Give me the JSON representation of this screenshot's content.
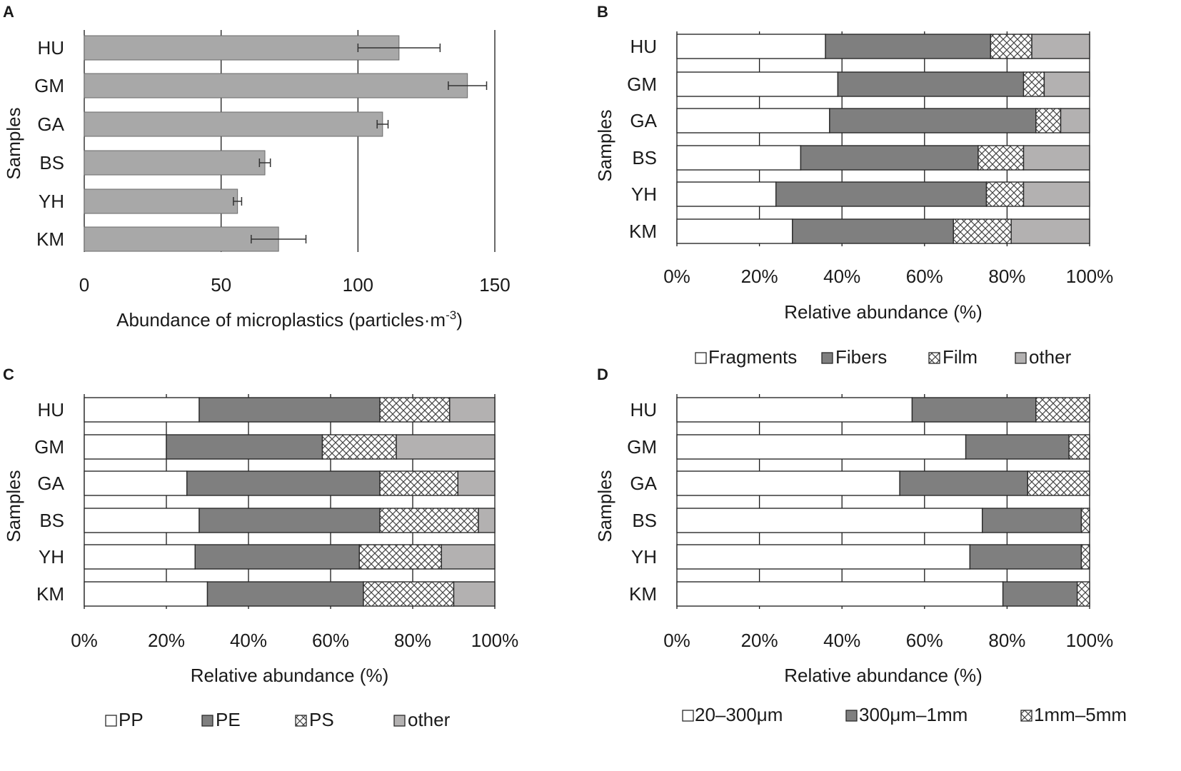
{
  "chart_data": [
    {
      "panel": "A",
      "type": "bar",
      "orientation": "horizontal",
      "categories": [
        "HU",
        "GM",
        "GA",
        "BS",
        "YH",
        "KM"
      ],
      "values": [
        115,
        140,
        109,
        66,
        56,
        71
      ],
      "errors": [
        15,
        7,
        2,
        2,
        1.5,
        10
      ],
      "xlabel": "Abundance of microplastics (particles·m",
      "xlabel_superscript": "-3",
      "xlabel_close": ")",
      "ylabel": "Samples",
      "xlim": [
        0,
        150
      ],
      "xticks": [
        "0",
        "50",
        "100",
        "150"
      ],
      "color": "#a8a8a8"
    },
    {
      "panel": "B",
      "type": "bar",
      "orientation": "horizontal",
      "stacked": true,
      "normalized": true,
      "categories": [
        "HU",
        "GM",
        "GA",
        "BS",
        "YH",
        "KM"
      ],
      "series": [
        {
          "name": "Fragments",
          "style": "white",
          "values": [
            36,
            39,
            37,
            30,
            24,
            28
          ]
        },
        {
          "name": "Fibers",
          "style": "dark",
          "values": [
            40,
            45,
            50,
            43,
            51,
            39
          ]
        },
        {
          "name": "Film",
          "style": "hatch",
          "values": [
            10,
            5,
            6,
            11,
            9,
            14
          ]
        },
        {
          "name": "other",
          "style": "light",
          "values": [
            14,
            11,
            7,
            16,
            16,
            19
          ]
        }
      ],
      "xlabel": "Relative abundance (%)",
      "ylabel": "Samples",
      "xticks": [
        "0%",
        "20%",
        "40%",
        "60%",
        "80%",
        "100%"
      ]
    },
    {
      "panel": "C",
      "type": "bar",
      "orientation": "horizontal",
      "stacked": true,
      "normalized": true,
      "categories": [
        "HU",
        "GM",
        "GA",
        "BS",
        "YH",
        "KM"
      ],
      "series": [
        {
          "name": "PP",
          "style": "white",
          "values": [
            28,
            20,
            25,
            28,
            27,
            30
          ]
        },
        {
          "name": "PE",
          "style": "dark",
          "values": [
            44,
            38,
            47,
            44,
            40,
            38
          ]
        },
        {
          "name": "PS",
          "style": "hatch",
          "values": [
            17,
            18,
            19,
            24,
            20,
            22
          ]
        },
        {
          "name": "other",
          "style": "light",
          "values": [
            11,
            24,
            9,
            4,
            13,
            10
          ]
        }
      ],
      "xlabel": "Relative abundance (%)",
      "ylabel": "Samples",
      "xticks": [
        "0%",
        "20%",
        "40%",
        "60%",
        "80%",
        "100%"
      ]
    },
    {
      "panel": "D",
      "type": "bar",
      "orientation": "horizontal",
      "stacked": true,
      "normalized": true,
      "categories": [
        "HU",
        "GM",
        "GA",
        "BS",
        "YH",
        "KM"
      ],
      "series": [
        {
          "name": "20–300μm",
          "style": "white",
          "values": [
            57,
            70,
            54,
            74,
            71,
            79
          ]
        },
        {
          "name": "300μm–1mm",
          "style": "dark",
          "values": [
            30,
            25,
            31,
            24,
            27,
            18
          ]
        },
        {
          "name": "1mm–5mm",
          "style": "hatch",
          "values": [
            13,
            5,
            15,
            2,
            2,
            3
          ]
        }
      ],
      "xlabel": "Relative abundance (%)",
      "ylabel": "Samples",
      "xticks": [
        "0%",
        "20%",
        "40%",
        "60%",
        "80%",
        "100%"
      ]
    }
  ],
  "colors": {
    "white": "#ffffff",
    "dark": "#7f7f7f",
    "light": "#b3b1b1",
    "bar_a": "#a8a8a8",
    "stroke": "#2a2a2a",
    "grid": "#1a1a1a"
  }
}
